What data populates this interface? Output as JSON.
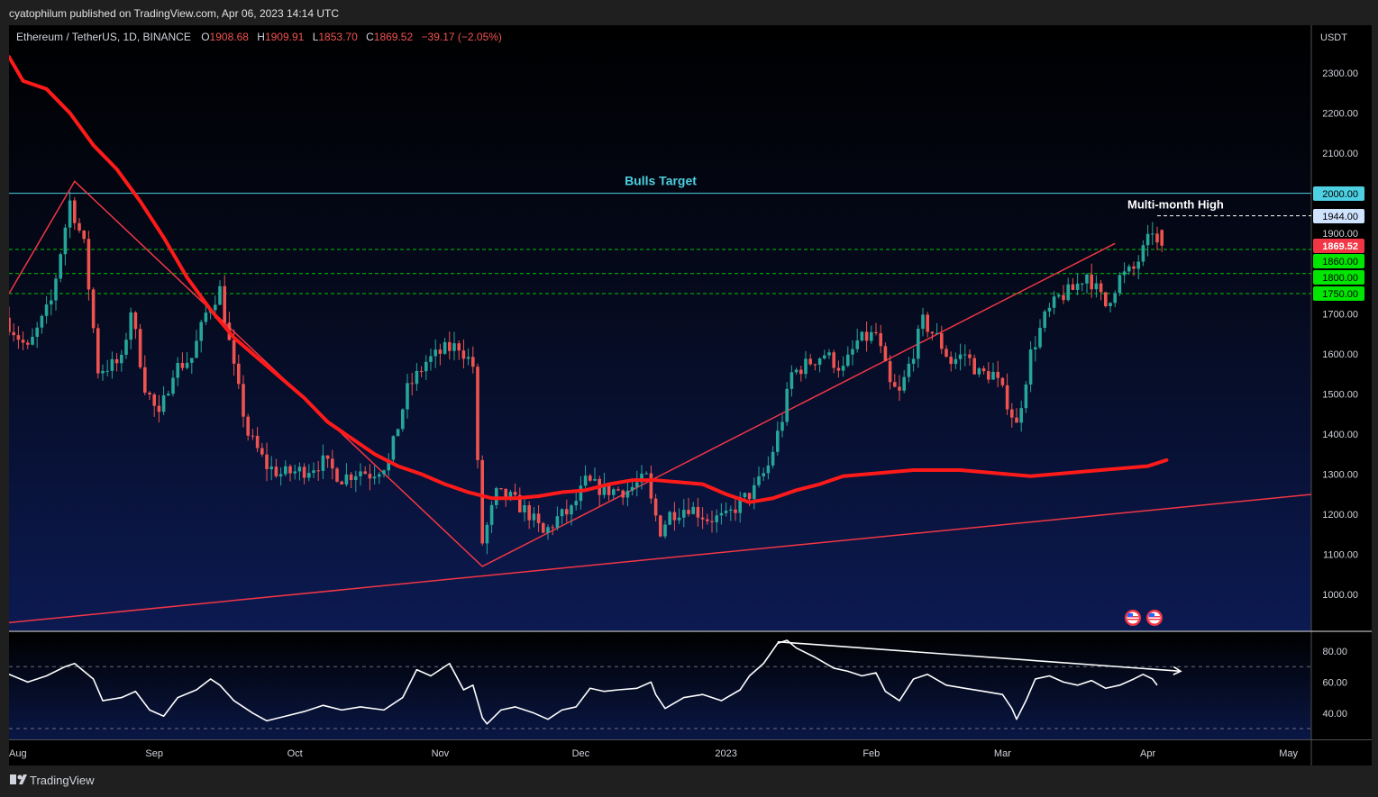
{
  "header": {
    "published": "cyatophilum published on TradingView.com, Apr 06, 2023 14:14 UTC"
  },
  "legend": {
    "symbol": "Ethereum / TetherUS, 1D, BINANCE",
    "o_label": "O",
    "o_value": "1908.68",
    "h_label": "H",
    "h_value": "1909.91",
    "l_label": "L",
    "l_value": "1853.70",
    "c_label": "C",
    "c_value": "1869.52",
    "change": "−39.17 (−2.05%)"
  },
  "footer": {
    "brand": "TradingView"
  },
  "colors": {
    "bull": "#26a69a",
    "bear": "#ef5350",
    "ma": "#ff1a1a",
    "trend": "#f23645",
    "target": "#4dd0e1",
    "support": "#00e600",
    "price_tag": "#f23645"
  },
  "chart_data": [
    {
      "type": "candlestick",
      "title": "Ethereum / TetherUS, 1D, BINANCE",
      "currency": "USDT",
      "ylim": [
        910,
        2400
      ],
      "y_ticks": [
        "2300.00",
        "2200.00",
        "2100.00",
        "2000.00",
        "1900.00",
        "1800.00",
        "1700.00",
        "1600.00",
        "1500.00",
        "1400.00",
        "1300.00",
        "1200.00",
        "1100.00",
        "1000.00"
      ],
      "x_labels": [
        {
          "label": "Aug",
          "day": 0
        },
        {
          "label": "Sep",
          "day": 31
        },
        {
          "label": "Oct",
          "day": 61
        },
        {
          "label": "Nov",
          "day": 92
        },
        {
          "label": "Dec",
          "day": 122
        },
        {
          "label": "2023",
          "day": 153
        },
        {
          "label": "Feb",
          "day": 184
        },
        {
          "label": "Mar",
          "day": 212
        },
        {
          "label": "Apr",
          "day": 243
        },
        {
          "label": "May",
          "day": 273
        }
      ],
      "price_path_anchors": [
        [
          0,
          1690
        ],
        [
          5,
          1610
        ],
        [
          10,
          1730
        ],
        [
          14,
          1980
        ],
        [
          17,
          1870
        ],
        [
          20,
          1560
        ],
        [
          25,
          1580
        ],
        [
          27,
          1710
        ],
        [
          30,
          1520
        ],
        [
          33,
          1440
        ],
        [
          36,
          1560
        ],
        [
          40,
          1590
        ],
        [
          43,
          1700
        ],
        [
          46,
          1760
        ],
        [
          49,
          1560
        ],
        [
          52,
          1400
        ],
        [
          56,
          1320
        ],
        [
          59,
          1300
        ],
        [
          64,
          1310
        ],
        [
          68,
          1330
        ],
        [
          72,
          1290
        ],
        [
          76,
          1310
        ],
        [
          78,
          1300
        ],
        [
          82,
          1330
        ],
        [
          86,
          1510
        ],
        [
          90,
          1580
        ],
        [
          94,
          1610
        ],
        [
          97,
          1620
        ],
        [
          100,
          1570
        ],
        [
          101,
          1320
        ],
        [
          102,
          1130
        ],
        [
          105,
          1250
        ],
        [
          108,
          1240
        ],
        [
          112,
          1200
        ],
        [
          115,
          1150
        ],
        [
          118,
          1190
        ],
        [
          121,
          1210
        ],
        [
          124,
          1280
        ],
        [
          128,
          1260
        ],
        [
          133,
          1260
        ],
        [
          137,
          1290
        ],
        [
          138,
          1230
        ],
        [
          140,
          1160
        ],
        [
          142,
          1200
        ],
        [
          146,
          1220
        ],
        [
          150,
          1190
        ],
        [
          154,
          1190
        ],
        [
          157,
          1230
        ],
        [
          160,
          1260
        ],
        [
          163,
          1320
        ],
        [
          166,
          1440
        ],
        [
          168,
          1550
        ],
        [
          172,
          1580
        ],
        [
          175,
          1600
        ],
        [
          179,
          1560
        ],
        [
          182,
          1630
        ],
        [
          186,
          1650
        ],
        [
          189,
          1520
        ],
        [
          191,
          1500
        ],
        [
          193,
          1570
        ],
        [
          196,
          1680
        ],
        [
          199,
          1640
        ],
        [
          202,
          1580
        ],
        [
          205,
          1600
        ],
        [
          208,
          1550
        ],
        [
          211,
          1550
        ],
        [
          214,
          1480
        ],
        [
          216,
          1420
        ],
        [
          219,
          1600
        ],
        [
          222,
          1690
        ],
        [
          225,
          1740
        ],
        [
          228,
          1760
        ],
        [
          231,
          1800
        ],
        [
          235,
          1720
        ],
        [
          238,
          1790
        ],
        [
          241,
          1810
        ],
        [
          244,
          1880
        ],
        [
          245,
          1910
        ],
        [
          246,
          1869
        ]
      ],
      "last_candle": {
        "open": 1908.68,
        "high": 1909.91,
        "low": 1853.7,
        "close": 1869.52
      },
      "moving_average": [
        [
          0,
          2340
        ],
        [
          3,
          2280
        ],
        [
          8,
          2260
        ],
        [
          13,
          2200
        ],
        [
          18,
          2120
        ],
        [
          23,
          2060
        ],
        [
          28,
          1980
        ],
        [
          33,
          1890
        ],
        [
          38,
          1790
        ],
        [
          43,
          1710
        ],
        [
          48,
          1640
        ],
        [
          53,
          1590
        ],
        [
          58,
          1540
        ],
        [
          63,
          1490
        ],
        [
          68,
          1430
        ],
        [
          73,
          1390
        ],
        [
          78,
          1350
        ],
        [
          83,
          1320
        ],
        [
          88,
          1300
        ],
        [
          93,
          1275
        ],
        [
          98,
          1255
        ],
        [
          103,
          1240
        ],
        [
          108,
          1240
        ],
        [
          113,
          1245
        ],
        [
          118,
          1255
        ],
        [
          123,
          1260
        ],
        [
          128,
          1275
        ],
        [
          133,
          1285
        ],
        [
          138,
          1285
        ],
        [
          143,
          1280
        ],
        [
          148,
          1275
        ],
        [
          153,
          1250
        ],
        [
          158,
          1230
        ],
        [
          163,
          1240
        ],
        [
          168,
          1260
        ],
        [
          173,
          1275
        ],
        [
          178,
          1295
        ],
        [
          183,
          1300
        ],
        [
          188,
          1305
        ],
        [
          193,
          1310
        ],
        [
          198,
          1310
        ],
        [
          203,
          1310
        ],
        [
          208,
          1305
        ],
        [
          213,
          1300
        ],
        [
          218,
          1295
        ],
        [
          223,
          1300
        ],
        [
          228,
          1305
        ],
        [
          233,
          1310
        ],
        [
          238,
          1315
        ],
        [
          243,
          1320
        ],
        [
          247,
          1335
        ]
      ],
      "drawings": {
        "bulls_target_level": 2000,
        "bulls_target_label": "Bulls Target",
        "multi_month_high_level": 1944,
        "multi_month_high_label": "Multi-month High",
        "support_levels": [
          1860,
          1800,
          1750
        ],
        "zigzag": [
          [
            0,
            1750
          ],
          [
            14,
            2030
          ],
          [
            101,
            1070
          ],
          [
            236,
            1875
          ]
        ],
        "rising_trendline": [
          [
            0,
            930
          ],
          [
            287,
            1260
          ]
        ]
      },
      "price_labels": [
        {
          "text": "2000.00",
          "value": 2000,
          "role": "target"
        },
        {
          "text": "1944.00",
          "value": 1944,
          "role": "high"
        },
        {
          "text": "1869.52",
          "value": 1869.52,
          "role": "last"
        },
        {
          "text": "1860.00",
          "value": 1860,
          "role": "support"
        },
        {
          "text": "1800.00",
          "value": 1800,
          "role": "support"
        },
        {
          "text": "1750.00",
          "value": 1750,
          "role": "support"
        }
      ]
    },
    {
      "type": "line",
      "title": "",
      "ylim": [
        25,
        92
      ],
      "y_ticks": [
        "80.00",
        "60.00",
        "40.00"
      ],
      "band_levels": [
        70,
        30
      ],
      "series": [
        {
          "values": [
            [
              0,
              65
            ],
            [
              4,
              60
            ],
            [
              8,
              64
            ],
            [
              12,
              70
            ],
            [
              14,
              72
            ],
            [
              18,
              62
            ],
            [
              20,
              48
            ],
            [
              24,
              50
            ],
            [
              27,
              54
            ],
            [
              30,
              42
            ],
            [
              33,
              38
            ],
            [
              36,
              50
            ],
            [
              40,
              55
            ],
            [
              43,
              62
            ],
            [
              45,
              58
            ],
            [
              48,
              48
            ],
            [
              52,
              40
            ],
            [
              55,
              35
            ],
            [
              59,
              38
            ],
            [
              63,
              41
            ],
            [
              67,
              45
            ],
            [
              71,
              42
            ],
            [
              75,
              44
            ],
            [
              80,
              42
            ],
            [
              84,
              50
            ],
            [
              87,
              68
            ],
            [
              90,
              64
            ],
            [
              94,
              72
            ],
            [
              97,
              55
            ],
            [
              99,
              58
            ],
            [
              101,
              37
            ],
            [
              102,
              33
            ],
            [
              105,
              42
            ],
            [
              108,
              44
            ],
            [
              112,
              40
            ],
            [
              115,
              36
            ],
            [
              118,
              42
            ],
            [
              121,
              44
            ],
            [
              124,
              56
            ],
            [
              127,
              54
            ],
            [
              130,
              55
            ],
            [
              134,
              56
            ],
            [
              137,
              60
            ],
            [
              138,
              52
            ],
            [
              140,
              43
            ],
            [
              144,
              50
            ],
            [
              148,
              52
            ],
            [
              152,
              48
            ],
            [
              156,
              55
            ],
            [
              158,
              64
            ],
            [
              161,
              72
            ],
            [
              164,
              85
            ],
            [
              166,
              87
            ],
            [
              168,
              82
            ],
            [
              172,
              76
            ],
            [
              176,
              69
            ],
            [
              179,
              67
            ],
            [
              182,
              64
            ],
            [
              185,
              66
            ],
            [
              187,
              54
            ],
            [
              190,
              48
            ],
            [
              193,
              62
            ],
            [
              196,
              65
            ],
            [
              200,
              58
            ],
            [
              204,
              56
            ],
            [
              208,
              54
            ],
            [
              212,
              52
            ],
            [
              214,
              43
            ],
            [
              215,
              36
            ],
            [
              217,
              48
            ],
            [
              219,
              62
            ],
            [
              222,
              64
            ],
            [
              225,
              60
            ],
            [
              228,
              58
            ],
            [
              231,
              61
            ],
            [
              234,
              56
            ],
            [
              237,
              58
            ],
            [
              240,
              62
            ],
            [
              242,
              65
            ],
            [
              244,
              62
            ],
            [
              245,
              58
            ]
          ]
        }
      ],
      "divergence_line": [
        [
          164,
          86
        ],
        [
          250,
          67
        ]
      ]
    }
  ]
}
